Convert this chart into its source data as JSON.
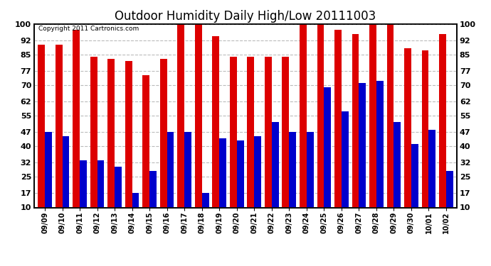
{
  "title": "Outdoor Humidity Daily High/Low 20111003",
  "copyright": "Copyright 2011 Cartronics.com",
  "dates": [
    "09/09",
    "09/10",
    "09/11",
    "09/12",
    "09/13",
    "09/14",
    "09/15",
    "09/16",
    "09/17",
    "09/18",
    "09/19",
    "09/20",
    "09/21",
    "09/22",
    "09/23",
    "09/24",
    "09/25",
    "09/26",
    "09/27",
    "09/28",
    "09/29",
    "09/30",
    "10/01",
    "10/02"
  ],
  "highs": [
    90,
    90,
    97,
    84,
    83,
    82,
    75,
    83,
    100,
    100,
    94,
    84,
    84,
    84,
    84,
    100,
    100,
    97,
    95,
    100,
    100,
    88,
    87,
    95
  ],
  "lows": [
    47,
    45,
    33,
    33,
    30,
    17,
    28,
    47,
    47,
    17,
    44,
    43,
    45,
    52,
    47,
    47,
    69,
    57,
    71,
    72,
    52,
    41,
    48,
    28
  ],
  "high_color": "#dd0000",
  "low_color": "#0000cc",
  "bg_color": "#ffffff",
  "yticks": [
    10,
    17,
    25,
    32,
    40,
    47,
    55,
    62,
    70,
    77,
    85,
    92,
    100
  ],
  "ymin": 10,
  "ymax": 100,
  "grid_color": "#bbbbbb",
  "title_fontsize": 12,
  "bar_width": 0.4
}
